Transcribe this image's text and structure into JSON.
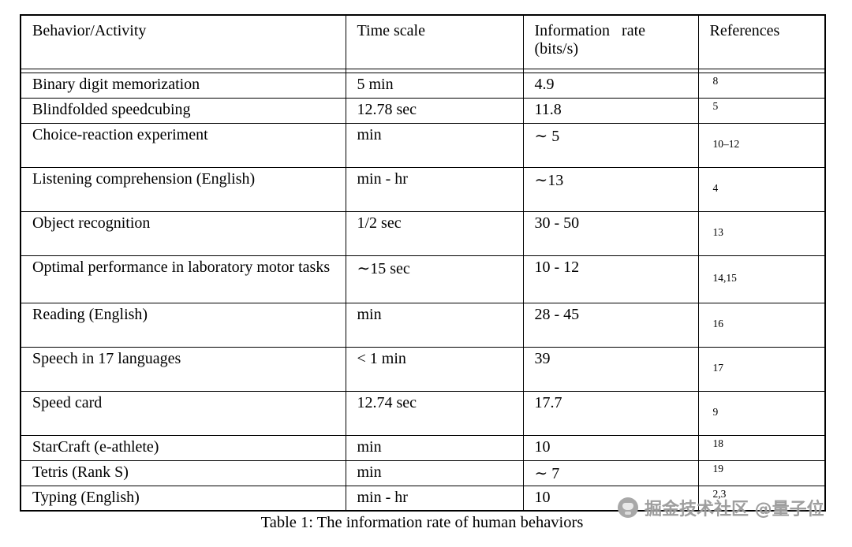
{
  "table": {
    "headers": {
      "behavior": "Behavior/Activity",
      "time": "Time scale",
      "rate": "Information   rate\n(bits/s)",
      "refs": "References"
    },
    "rows": [
      {
        "behavior": "Binary digit memorization",
        "time": "5 min",
        "rate": "4.9",
        "refs": "8"
      },
      {
        "behavior": "Blindfolded speedcubing",
        "time": "12.78 sec",
        "rate": "11.8",
        "refs": "5"
      },
      {
        "behavior": "Choice-reaction experiment",
        "time": "min",
        "rate": "∼ 5",
        "refs": "10–12"
      },
      {
        "behavior": "Listening comprehension (English)",
        "time": "min - hr",
        "rate": "∼13",
        "refs": "4"
      },
      {
        "behavior": "Object recognition",
        "time": "1/2 sec",
        "rate": "30 - 50",
        "refs": "13"
      },
      {
        "behavior": "Optimal performance in laboratory motor tasks",
        "time": "∼15 sec",
        "rate": "10 - 12",
        "refs": "14,15"
      },
      {
        "behavior": "Reading (English)",
        "time": "min",
        "rate": "28 - 45",
        "refs": "16"
      },
      {
        "behavior": "Speech in 17 languages",
        "time": "< 1 min",
        "rate": "39",
        "refs": "17"
      },
      {
        "behavior": "Speed card",
        "time": "12.74 sec",
        "rate": "17.7",
        "refs": "9"
      },
      {
        "behavior": "StarCraft (e-athlete)",
        "time": "min",
        "rate": "10",
        "refs": "18"
      },
      {
        "behavior": "Tetris (Rank S)",
        "time": "min",
        "rate": "∼ 7",
        "refs": "19"
      },
      {
        "behavior": "Typing (English)",
        "time": "min - hr",
        "rate": "10",
        "refs": "2,3"
      }
    ],
    "caption": "Table 1: The information rate of human behaviors"
  },
  "watermark": {
    "icon": "juejin-community-icon",
    "text": "掘金技术社区 @量子位"
  }
}
